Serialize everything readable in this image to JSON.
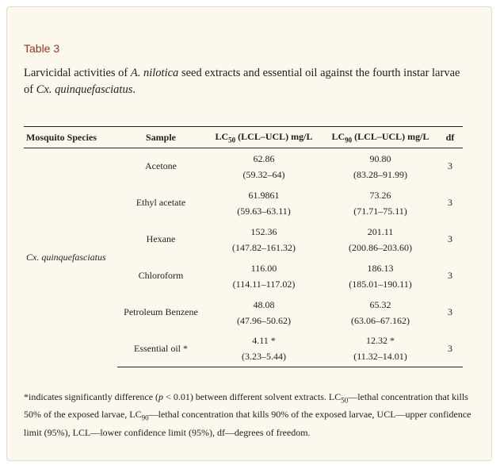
{
  "table_label": "Table 3",
  "caption": {
    "part1": "Larvicidal activities of ",
    "species_italic": "A. nilotica",
    "part2": " seed extracts and essential oil against the fourth instar larvae of ",
    "target_italic": "Cx. quinquefasciatus",
    "part3": "."
  },
  "headers": {
    "species": "Mosquito Species",
    "sample": "Sample",
    "lc50_prefix": "LC",
    "lc50_sub": "50",
    "lc50_suffix": " (LCL–UCL) mg/L",
    "lc90_prefix": "LC",
    "lc90_sub": "90",
    "lc90_suffix": " (LCL–UCL) mg/L",
    "df": "df"
  },
  "species_name": "Cx. quinquefasciatus",
  "rows": [
    {
      "sample": "Acetone",
      "lc50": "62.86",
      "lc50_ci": "(59.32–64)",
      "lc90": "90.80",
      "lc90_ci": "(83.28–91.99)",
      "df": "3"
    },
    {
      "sample": "Ethyl acetate",
      "lc50": "61.9861",
      "lc50_ci": "(59.63–63.11)",
      "lc90": "73.26",
      "lc90_ci": "(71.71–75.11)",
      "df": "3"
    },
    {
      "sample": "Hexane",
      "lc50": "152.36",
      "lc50_ci": "(147.82–161.32)",
      "lc90": "201.11",
      "lc90_ci": "(200.86–203.60)",
      "df": "3"
    },
    {
      "sample": "Chloroform",
      "lc50": "116.00",
      "lc50_ci": "(114.11–117.02)",
      "lc90": "186.13",
      "lc90_ci": "(185.01–190.11)",
      "df": "3"
    },
    {
      "sample": "Petroleum Benzene",
      "lc50": "48.08",
      "lc50_ci": "(47.96–50.62)",
      "lc90": "65.32",
      "lc90_ci": "(63.06–67.162)",
      "df": "3"
    },
    {
      "sample": "Essential oil *",
      "lc50": "4.11 *",
      "lc50_ci": "(3.23–5.44)",
      "lc90": "12.32 *",
      "lc90_ci": "(11.32–14.01)",
      "df": "3"
    }
  ],
  "footnote": {
    "t1": "*indicates significantly difference (",
    "p_italic": "p",
    "t2": " < 0.01) between different solvent extracts. LC",
    "sub1": "50",
    "t3": "—lethal concentration that kills 50% of the exposed larvae, LC",
    "sub2": "90",
    "t4": "—lethal concentration that kills 90% of the exposed larvae, UCL—upper confidence limit (95%), LCL—lower confidence limit (95%), df—degrees of freedom."
  }
}
